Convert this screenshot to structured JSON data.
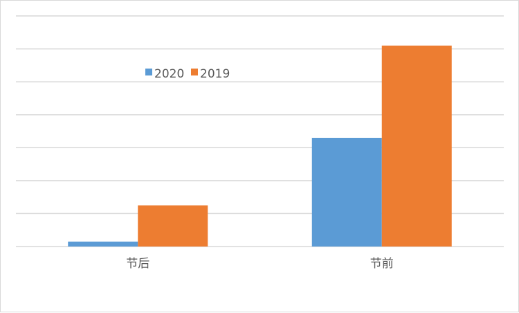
{
  "chart_data": {
    "type": "bar",
    "categories": [
      "节后",
      "节前"
    ],
    "series": [
      {
        "name": "2020",
        "values": [
          0.15,
          3.3
        ]
      },
      {
        "name": "2019",
        "values": [
          1.25,
          6.1
        ]
      }
    ],
    "ylim": [
      0,
      7
    ],
    "grid": true,
    "legend_position": "top-left",
    "colors": {
      "2020": "#5b9bd5",
      "2019": "#ed7d31"
    }
  }
}
